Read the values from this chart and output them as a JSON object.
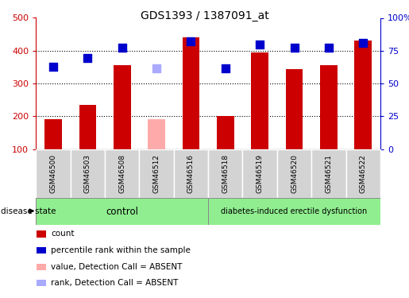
{
  "title": "GDS1393 / 1387091_at",
  "samples": [
    "GSM46500",
    "GSM46503",
    "GSM46508",
    "GSM46512",
    "GSM46516",
    "GSM46518",
    "GSM46519",
    "GSM46520",
    "GSM46521",
    "GSM46522"
  ],
  "bar_values": [
    190,
    235,
    355,
    190,
    440,
    200,
    395,
    343,
    355,
    430
  ],
  "bar_colors": [
    "#cc0000",
    "#cc0000",
    "#cc0000",
    "#ffaaaa",
    "#cc0000",
    "#cc0000",
    "#cc0000",
    "#cc0000",
    "#cc0000",
    "#cc0000"
  ],
  "rank_values": [
    350,
    378,
    410,
    347,
    428,
    345,
    418,
    408,
    410,
    423
  ],
  "rank_colors": [
    "#0000cc",
    "#0000cc",
    "#0000cc",
    "#aaaaff",
    "#0000cc",
    "#0000cc",
    "#0000cc",
    "#0000cc",
    "#0000cc",
    "#0000cc"
  ],
  "ylim_left": [
    100,
    500
  ],
  "ylim_right": [
    0,
    100
  ],
  "yticks_left": [
    100,
    200,
    300,
    400,
    500
  ],
  "ytick_labels_left": [
    "100",
    "200",
    "300",
    "400",
    "500"
  ],
  "yticks_right": [
    0,
    25,
    50,
    75,
    100
  ],
  "ytick_labels_right": [
    "0",
    "25",
    "50",
    "75",
    "100%"
  ],
  "control_label": "control",
  "disease_label": "diabetes-induced erectile dysfunction",
  "disease_state_label": "disease state",
  "legend_items": [
    {
      "label": "count",
      "color": "#cc0000",
      "type": "rect"
    },
    {
      "label": "percentile rank within the sample",
      "color": "#0000cc",
      "type": "rect"
    },
    {
      "label": "value, Detection Call = ABSENT",
      "color": "#ffaaaa",
      "type": "rect"
    },
    {
      "label": "rank, Detection Call = ABSENT",
      "color": "#aaaaff",
      "type": "rect"
    }
  ],
  "control_bg": "#90ee90",
  "disease_bg": "#90ee90",
  "sample_bg": "#d3d3d3",
  "bar_width": 0.5,
  "rank_marker_size": 45,
  "grid_lines": [
    200,
    300,
    400
  ],
  "n_control": 5,
  "n_disease": 5
}
